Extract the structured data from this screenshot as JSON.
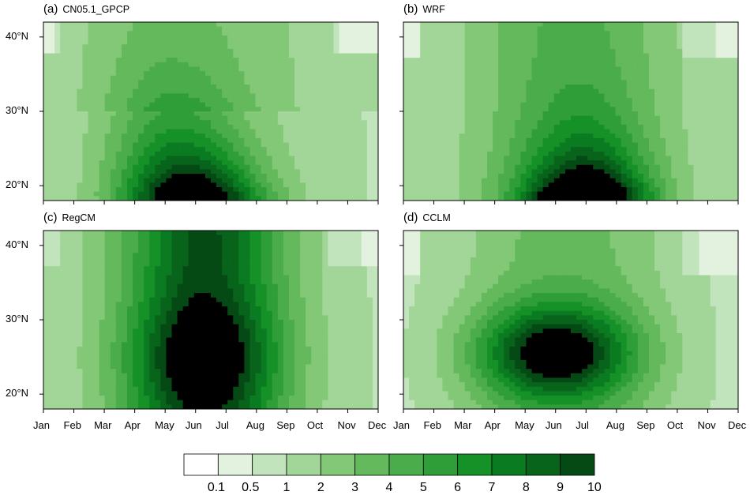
{
  "chart_data": {
    "type": "heatmap",
    "months": [
      "Jan",
      "Feb",
      "Mar",
      "Apr",
      "May",
      "Jun",
      "Jul",
      "Aug",
      "Sep",
      "Oct",
      "Nov",
      "Dec"
    ],
    "lat_ticks": [
      "40°N",
      "30°N",
      "20°N"
    ],
    "lat_tick_values": [
      40,
      30,
      20
    ],
    "lat_range": [
      18,
      42
    ],
    "panels": [
      {
        "tag": "(a)",
        "name": "CN05.1_GPCP"
      },
      {
        "tag": "(b)",
        "name": "WRF"
      },
      {
        "tag": "(c)",
        "name": "RegCM"
      },
      {
        "tag": "(d)",
        "name": "CCLM"
      }
    ],
    "colorbar": {
      "labels": [
        "0.1",
        "0.5",
        "1",
        "2",
        "3",
        "4",
        "5",
        "6",
        "7",
        "8",
        "9",
        "10"
      ],
      "colors": [
        "#ffffff",
        "#e2f2df",
        "#c1e4bc",
        "#a2d698",
        "#82c876",
        "#63b95b",
        "#4aac4a",
        "#2f9e38",
        "#159127",
        "#0b7b22",
        "#08631b",
        "#054a15"
      ]
    }
  }
}
